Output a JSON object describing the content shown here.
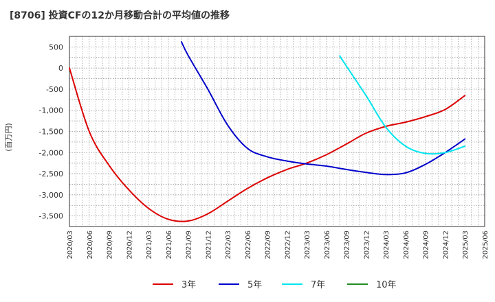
{
  "title": "[8706]  投資CFの12か月移動合計の平均値の推移",
  "chart_data": {
    "type": "line",
    "ylabel": "(百万円)",
    "ylim": [
      -3750,
      750
    ],
    "yticks": [
      500,
      0,
      -500,
      -1000,
      -1500,
      -2000,
      -2500,
      -3000,
      -3500
    ],
    "ytick_labels": [
      "500",
      "0",
      "-500",
      "-1,000",
      "-1,500",
      "-2,000",
      "-2,500",
      "-3,000",
      "-3,500"
    ],
    "xticks": [
      "2020/03",
      "2020/06",
      "2020/09",
      "2020/12",
      "2021/03",
      "2021/06",
      "2021/09",
      "2021/12",
      "2022/03",
      "2022/06",
      "2022/09",
      "2022/12",
      "2023/03",
      "2023/06",
      "2023/09",
      "2023/12",
      "2024/03",
      "2024/06",
      "2024/09",
      "2024/12",
      "2025/03",
      "2025/06"
    ],
    "grid": true,
    "legend_position": "bottom",
    "series": [
      {
        "name": "3年",
        "color": "#dd0000",
        "x": [
          "2020/03",
          "2020/06",
          "2020/09",
          "2020/12",
          "2021/03",
          "2021/06",
          "2021/09",
          "2021/12",
          "2022/03",
          "2022/06",
          "2022/09",
          "2022/12",
          "2023/03",
          "2023/06",
          "2023/09",
          "2023/12",
          "2024/03",
          "2024/06",
          "2024/09",
          "2024/12",
          "2025/03"
        ],
        "values": [
          0,
          -1500,
          -2300,
          -2880,
          -3320,
          -3580,
          -3620,
          -3450,
          -3150,
          -2850,
          -2600,
          -2400,
          -2250,
          -2050,
          -1800,
          -1540,
          -1380,
          -1280,
          -1150,
          -980,
          -650
        ]
      },
      {
        "name": "5年",
        "color": "#0000cc",
        "x": [
          "2021/08",
          "2021/09",
          "2021/12",
          "2022/03",
          "2022/06",
          "2022/09",
          "2022/12",
          "2023/03",
          "2023/06",
          "2023/09",
          "2023/12",
          "2024/03",
          "2024/06",
          "2024/09",
          "2024/12",
          "2025/03"
        ],
        "values": [
          620,
          300,
          -500,
          -1350,
          -1900,
          -2100,
          -2200,
          -2270,
          -2320,
          -2400,
          -2470,
          -2520,
          -2480,
          -2280,
          -2000,
          -1680
        ]
      },
      {
        "name": "7年",
        "color": "#00e5ee",
        "x": [
          "2023/08",
          "2023/09",
          "2023/12",
          "2024/03",
          "2024/06",
          "2024/09",
          "2024/12",
          "2025/03"
        ],
        "values": [
          290,
          50,
          -650,
          -1400,
          -1850,
          -2020,
          -2000,
          -1850
        ]
      },
      {
        "name": "10年",
        "color": "#228b22",
        "x": [],
        "values": []
      }
    ]
  }
}
